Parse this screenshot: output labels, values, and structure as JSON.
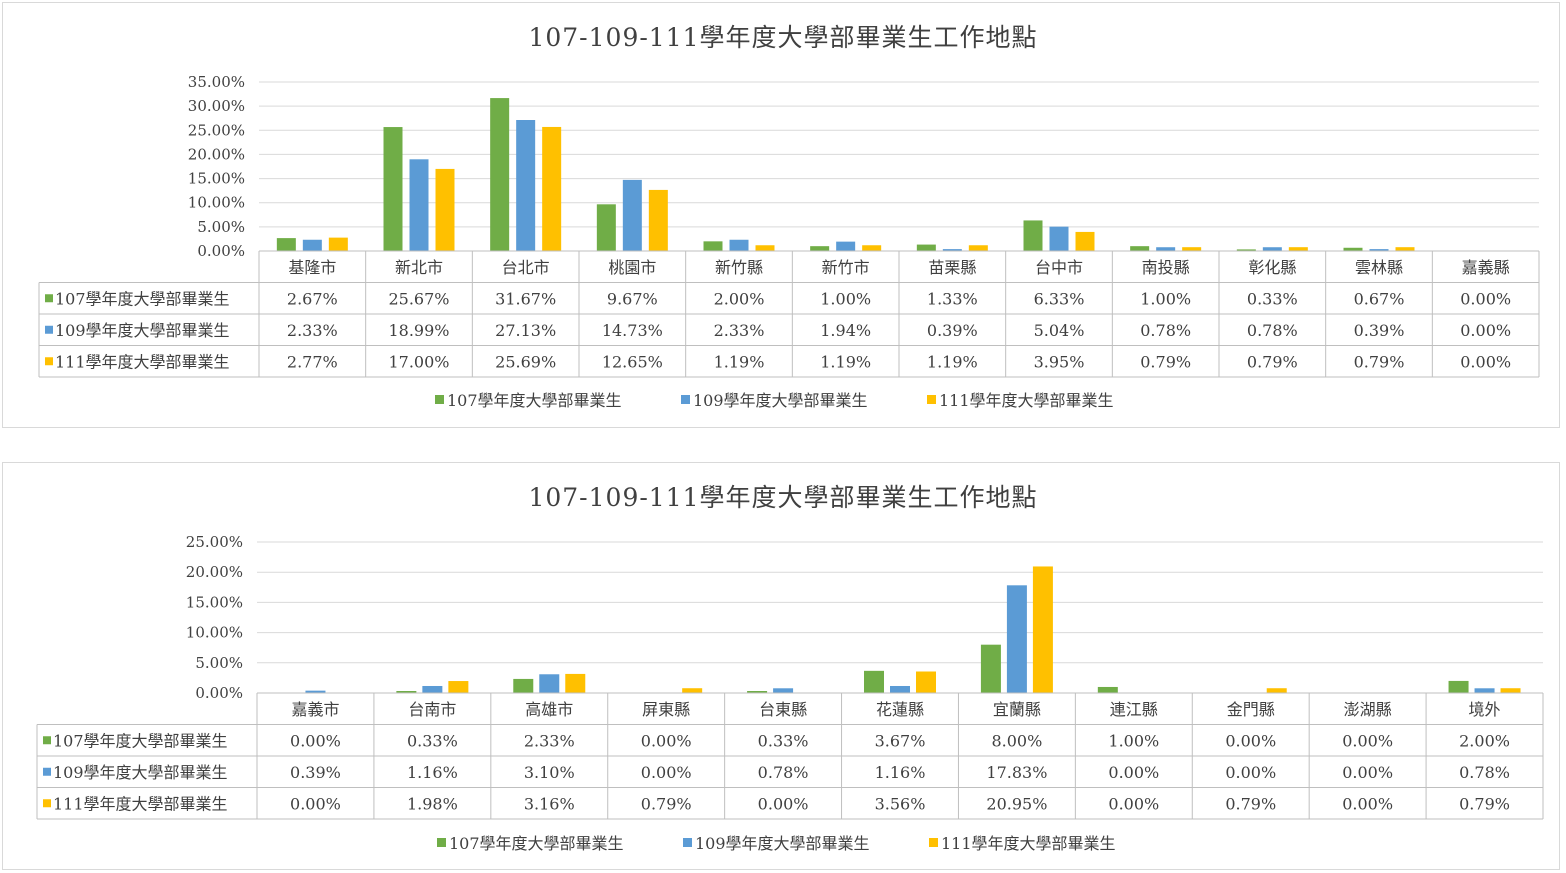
{
  "colors": {
    "s107": "#70ad47",
    "s109": "#5b9bd5",
    "s111": "#ffc000"
  },
  "chart_data": [
    {
      "type": "bar",
      "title": "107-109-111學年度大學部畢業生工作地點",
      "ylim": [
        0,
        35
      ],
      "yticks": [
        "0.00%",
        "5.00%",
        "10.00%",
        "15.00%",
        "20.00%",
        "25.00%",
        "30.00%",
        "35.00%"
      ],
      "grid": true,
      "legend_position": "bottom",
      "categories": [
        "基隆市",
        "新北市",
        "台北市",
        "桃園市",
        "新竹縣",
        "新竹市",
        "苗栗縣",
        "台中市",
        "南投縣",
        "彰化縣",
        "雲林縣",
        "嘉義縣"
      ],
      "series": [
        {
          "name": "107學年度大學部畢業生",
          "color": "#70ad47",
          "values": [
            2.67,
            25.67,
            31.67,
            9.67,
            2.0,
            1.0,
            1.33,
            6.33,
            1.0,
            0.33,
            0.67,
            0.0
          ],
          "labels": [
            "2.67%",
            "25.67%",
            "31.67%",
            "9.67%",
            "2.00%",
            "1.00%",
            "1.33%",
            "6.33%",
            "1.00%",
            "0.33%",
            "0.67%",
            "0.00%"
          ]
        },
        {
          "name": "109學年度大學部畢業生",
          "color": "#5b9bd5",
          "values": [
            2.33,
            18.99,
            27.13,
            14.73,
            2.33,
            1.94,
            0.39,
            5.04,
            0.78,
            0.78,
            0.39,
            0.0
          ],
          "labels": [
            "2.33%",
            "18.99%",
            "27.13%",
            "14.73%",
            "2.33%",
            "1.94%",
            "0.39%",
            "5.04%",
            "0.78%",
            "0.78%",
            "0.39%",
            "0.00%"
          ]
        },
        {
          "name": "111學年度大學部畢業生",
          "color": "#ffc000",
          "values": [
            2.77,
            17.0,
            25.69,
            12.65,
            1.19,
            1.19,
            1.19,
            3.95,
            0.79,
            0.79,
            0.79,
            0.0
          ],
          "labels": [
            "2.77%",
            "17.00%",
            "25.69%",
            "12.65%",
            "1.19%",
            "1.19%",
            "1.19%",
            "3.95%",
            "0.79%",
            "0.79%",
            "0.79%",
            "0.00%"
          ]
        }
      ]
    },
    {
      "type": "bar",
      "title": "107-109-111學年度大學部畢業生工作地點",
      "ylim": [
        0,
        25
      ],
      "yticks": [
        "0.00%",
        "5.00%",
        "10.00%",
        "15.00%",
        "20.00%",
        "25.00%"
      ],
      "grid": true,
      "legend_position": "bottom",
      "categories": [
        "嘉義市",
        "台南市",
        "高雄市",
        "屏東縣",
        "台東縣",
        "花蓮縣",
        "宜蘭縣",
        "連江縣",
        "金門縣",
        "澎湖縣",
        "境外"
      ],
      "series": [
        {
          "name": "107學年度大學部畢業生",
          "color": "#70ad47",
          "values": [
            0.0,
            0.33,
            2.33,
            0.0,
            0.33,
            3.67,
            8.0,
            1.0,
            0.0,
            0.0,
            2.0
          ],
          "labels": [
            "0.00%",
            "0.33%",
            "2.33%",
            "0.00%",
            "0.33%",
            "3.67%",
            "8.00%",
            "1.00%",
            "0.00%",
            "0.00%",
            "2.00%"
          ]
        },
        {
          "name": "109學年度大學部畢業生",
          "color": "#5b9bd5",
          "values": [
            0.39,
            1.16,
            3.1,
            0.0,
            0.78,
            1.16,
            17.83,
            0.0,
            0.0,
            0.0,
            0.78
          ],
          "labels": [
            "0.39%",
            "1.16%",
            "3.10%",
            "0.00%",
            "0.78%",
            "1.16%",
            "17.83%",
            "0.00%",
            "0.00%",
            "0.00%",
            "0.78%"
          ]
        },
        {
          "name": "111學年度大學部畢業生",
          "color": "#ffc000",
          "values": [
            0.0,
            1.98,
            3.16,
            0.79,
            0.0,
            3.56,
            20.95,
            0.0,
            0.79,
            0.0,
            0.79
          ],
          "labels": [
            "0.00%",
            "1.98%",
            "3.16%",
            "0.79%",
            "0.00%",
            "3.56%",
            "20.95%",
            "0.00%",
            "0.79%",
            "0.00%",
            "0.79%"
          ]
        }
      ]
    }
  ]
}
